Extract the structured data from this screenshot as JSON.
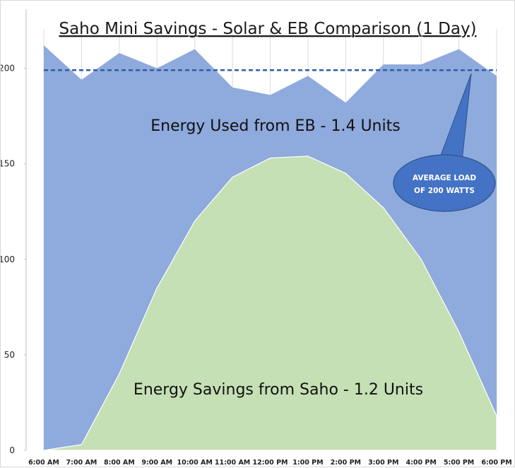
{
  "chart_data": {
    "type": "area",
    "title": "Saho Mini Savings - Solar & EB Comparison (1 Day)",
    "categories": [
      "6:00 AM",
      "7:00 AM",
      "8:00 AM",
      "9:00 AM",
      "10:00 AM",
      "11:00 AM",
      "12:00 PM",
      "1:00 PM",
      "2:00 PM",
      "3:00 PM",
      "4:00 PM",
      "5:00 PM",
      "6:00 PM"
    ],
    "series": [
      {
        "name": "Energy Used from EB",
        "color": "#8faadc",
        "values": [
          212,
          194,
          208,
          200,
          210,
          190,
          186,
          196,
          182,
          202,
          202,
          210,
          196
        ]
      },
      {
        "name": "Energy Savings from Saho",
        "color": "#c5e0b4",
        "values": [
          0,
          3,
          40,
          85,
          120,
          143,
          153,
          154,
          145,
          127,
          100,
          62,
          18
        ]
      }
    ],
    "average_load": {
      "value": 199,
      "color": "#2e5ea8"
    },
    "ylim": [
      0,
      225
    ],
    "yticks": [
      0,
      50,
      100,
      150,
      200
    ],
    "annotations": {
      "eb_label": "Energy Used from EB - 1.4 Units",
      "saho_label": "Energy Savings from Saho - 1.2 Units",
      "callout_line1": "AVERAGE LOAD",
      "callout_line2": "OF 200 WATTS"
    }
  }
}
